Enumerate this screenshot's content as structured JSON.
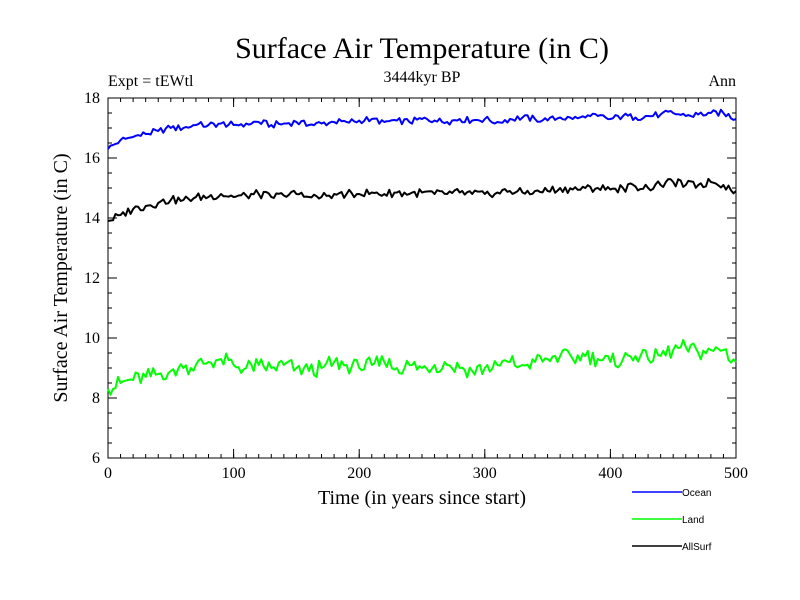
{
  "chart_data": {
    "type": "line",
    "title": "Surface Air Temperature (in C)",
    "subtitle": "3444kyr BP",
    "left_label": "Expt = tEWtl",
    "right_label": "Ann",
    "xlabel": "Time (in years since start)",
    "ylabel": "Surface Air Temperature (in C)",
    "xlim": [
      0,
      500
    ],
    "ylim": [
      6,
      18
    ],
    "x_ticks": [
      0,
      100,
      200,
      300,
      400,
      500
    ],
    "y_ticks": [
      6,
      8,
      10,
      12,
      14,
      16,
      18
    ],
    "grid": false,
    "legend_position": "bottom-right",
    "series": [
      {
        "name": "Ocean",
        "color": "#0000ff",
        "x": [
          0,
          10,
          20,
          30,
          40,
          50,
          60,
          70,
          80,
          90,
          100,
          110,
          120,
          130,
          140,
          150,
          160,
          170,
          180,
          190,
          200,
          210,
          220,
          230,
          240,
          250,
          260,
          270,
          280,
          290,
          300,
          310,
          320,
          330,
          340,
          350,
          360,
          370,
          380,
          390,
          400,
          410,
          420,
          430,
          440,
          450,
          460,
          470,
          480,
          490,
          500
        ],
        "values": [
          16.3,
          16.6,
          16.7,
          16.8,
          16.9,
          17.0,
          17.0,
          17.1,
          17.1,
          17.15,
          17.1,
          17.15,
          17.2,
          17.1,
          17.15,
          17.2,
          17.1,
          17.15,
          17.2,
          17.2,
          17.25,
          17.3,
          17.2,
          17.25,
          17.2,
          17.3,
          17.25,
          17.2,
          17.3,
          17.25,
          17.3,
          17.2,
          17.3,
          17.35,
          17.3,
          17.25,
          17.35,
          17.3,
          17.35,
          17.4,
          17.3,
          17.4,
          17.35,
          17.4,
          17.45,
          17.5,
          17.4,
          17.45,
          17.5,
          17.5,
          17.3
        ]
      },
      {
        "name": "Land",
        "color": "#00ff00",
        "x": [
          0,
          10,
          20,
          30,
          40,
          50,
          60,
          70,
          80,
          90,
          100,
          110,
          120,
          130,
          140,
          150,
          160,
          170,
          180,
          190,
          200,
          210,
          220,
          230,
          240,
          250,
          260,
          270,
          280,
          290,
          300,
          310,
          320,
          330,
          340,
          350,
          360,
          370,
          380,
          390,
          400,
          410,
          420,
          430,
          440,
          450,
          460,
          470,
          480,
          490,
          500
        ],
        "values": [
          8.3,
          8.5,
          8.6,
          8.7,
          8.8,
          8.9,
          9.0,
          9.1,
          9.2,
          9.3,
          9.1,
          9.0,
          9.1,
          9.0,
          9.1,
          9.0,
          8.9,
          9.0,
          9.2,
          9.1,
          9.0,
          9.1,
          9.2,
          9.0,
          9.1,
          9.0,
          9.1,
          9.1,
          9.0,
          8.9,
          9.0,
          9.1,
          9.2,
          9.1,
          9.2,
          9.3,
          9.4,
          9.3,
          9.4,
          9.3,
          9.2,
          9.3,
          9.4,
          9.3,
          9.4,
          9.6,
          9.7,
          9.5,
          9.6,
          9.6,
          9.2
        ]
      },
      {
        "name": "AllSurf",
        "color": "#000000",
        "x": [
          0,
          10,
          20,
          30,
          40,
          50,
          60,
          70,
          80,
          90,
          100,
          110,
          120,
          130,
          140,
          150,
          160,
          170,
          180,
          190,
          200,
          210,
          220,
          230,
          240,
          250,
          260,
          270,
          280,
          290,
          300,
          310,
          320,
          330,
          340,
          350,
          360,
          370,
          380,
          390,
          400,
          410,
          420,
          430,
          440,
          450,
          460,
          470,
          480,
          490,
          500
        ],
        "values": [
          13.9,
          14.1,
          14.3,
          14.4,
          14.5,
          14.6,
          14.6,
          14.7,
          14.7,
          14.8,
          14.7,
          14.75,
          14.8,
          14.7,
          14.75,
          14.8,
          14.7,
          14.7,
          14.8,
          14.8,
          14.8,
          14.85,
          14.8,
          14.85,
          14.8,
          14.85,
          14.8,
          14.8,
          14.85,
          14.8,
          14.8,
          14.85,
          14.9,
          14.85,
          14.9,
          14.9,
          15.0,
          14.95,
          15.0,
          15.0,
          14.95,
          15.0,
          15.05,
          15.0,
          15.1,
          15.2,
          15.1,
          15.1,
          15.2,
          15.1,
          14.9
        ]
      }
    ]
  }
}
